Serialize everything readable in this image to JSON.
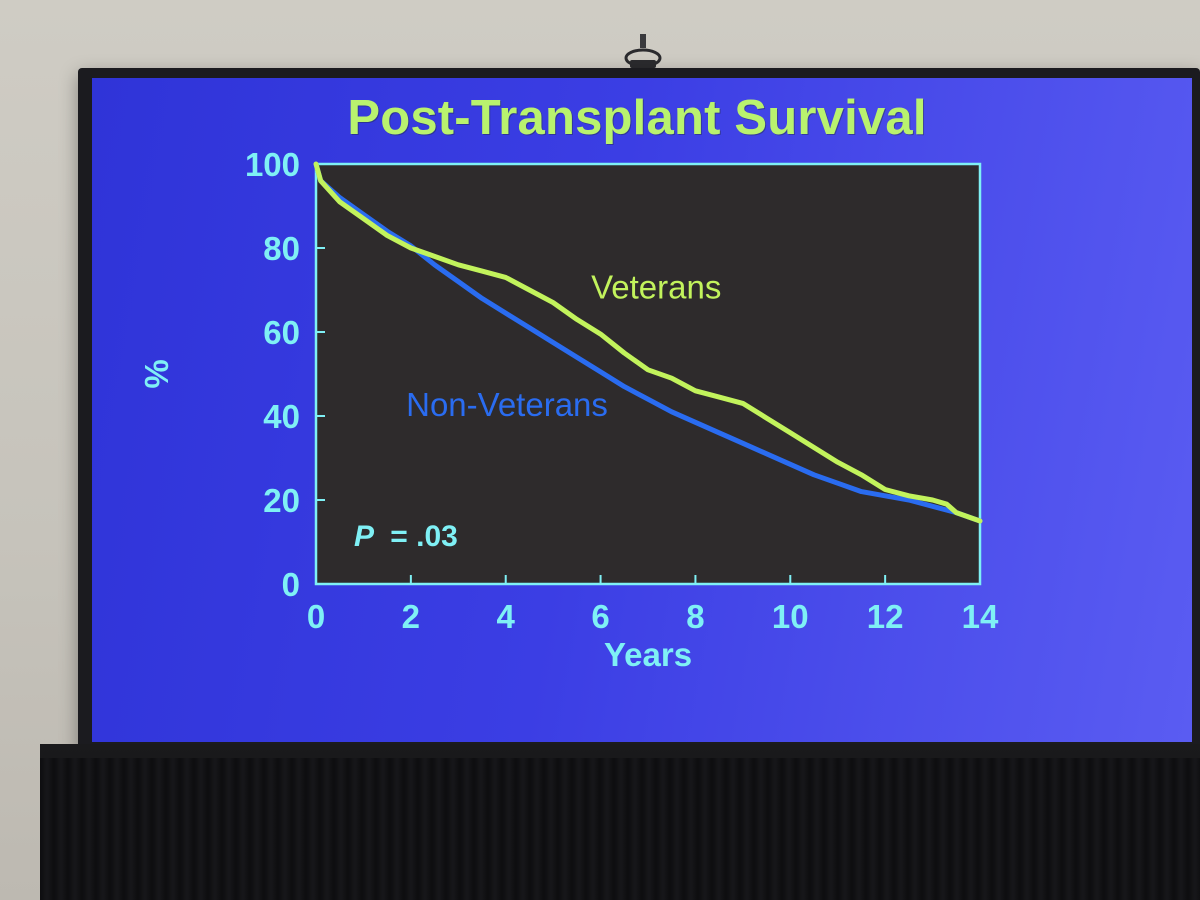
{
  "chart_data": {
    "type": "line",
    "title": "Post-Transplant Survival",
    "xlabel": "Years",
    "ylabel": "%",
    "xlim": [
      0,
      14
    ],
    "ylim": [
      0,
      100
    ],
    "x_ticks": [
      0,
      2,
      4,
      6,
      8,
      10,
      12,
      14
    ],
    "y_ticks": [
      0,
      20,
      40,
      60,
      80,
      100
    ],
    "grid": false,
    "annotation": {
      "p_label": "P",
      "p_value": "= .03"
    },
    "series": [
      {
        "name": "Veterans",
        "color": "#c2f35c",
        "x": [
          0,
          0.1,
          0.5,
          1,
          1.5,
          2,
          2.5,
          3,
          3.5,
          4,
          4.5,
          5,
          5.5,
          6,
          6.5,
          7,
          7.5,
          8,
          8.5,
          9,
          9.5,
          10,
          10.5,
          11,
          11.5,
          12,
          12.5,
          13,
          13.3,
          13.5,
          14
        ],
        "y": [
          100,
          96,
          91,
          87,
          83,
          80,
          78,
          76,
          74.5,
          73,
          70,
          67,
          63,
          59.5,
          55,
          51,
          49,
          46,
          44.5,
          43,
          39.5,
          36,
          32.5,
          29,
          26,
          22.5,
          21,
          20,
          19,
          17,
          15
        ]
      },
      {
        "name": "Non-Veterans",
        "color": "#2a6cf0",
        "x": [
          0,
          0.1,
          0.5,
          1,
          1.5,
          2,
          2.5,
          3,
          3.5,
          4,
          4.5,
          5,
          5.5,
          6,
          6.5,
          7,
          7.5,
          8,
          8.5,
          9,
          9.5,
          10,
          10.5,
          11,
          11.5,
          12,
          12.5,
          13,
          13.5,
          14
        ],
        "y": [
          100,
          96,
          92,
          88,
          84,
          80.5,
          76,
          72,
          68,
          64.5,
          61,
          57.5,
          54,
          50.5,
          47,
          44,
          41,
          38.5,
          36,
          33.5,
          31,
          28.5,
          26,
          24,
          22,
          21,
          20,
          18.5,
          17,
          15
        ]
      }
    ]
  }
}
